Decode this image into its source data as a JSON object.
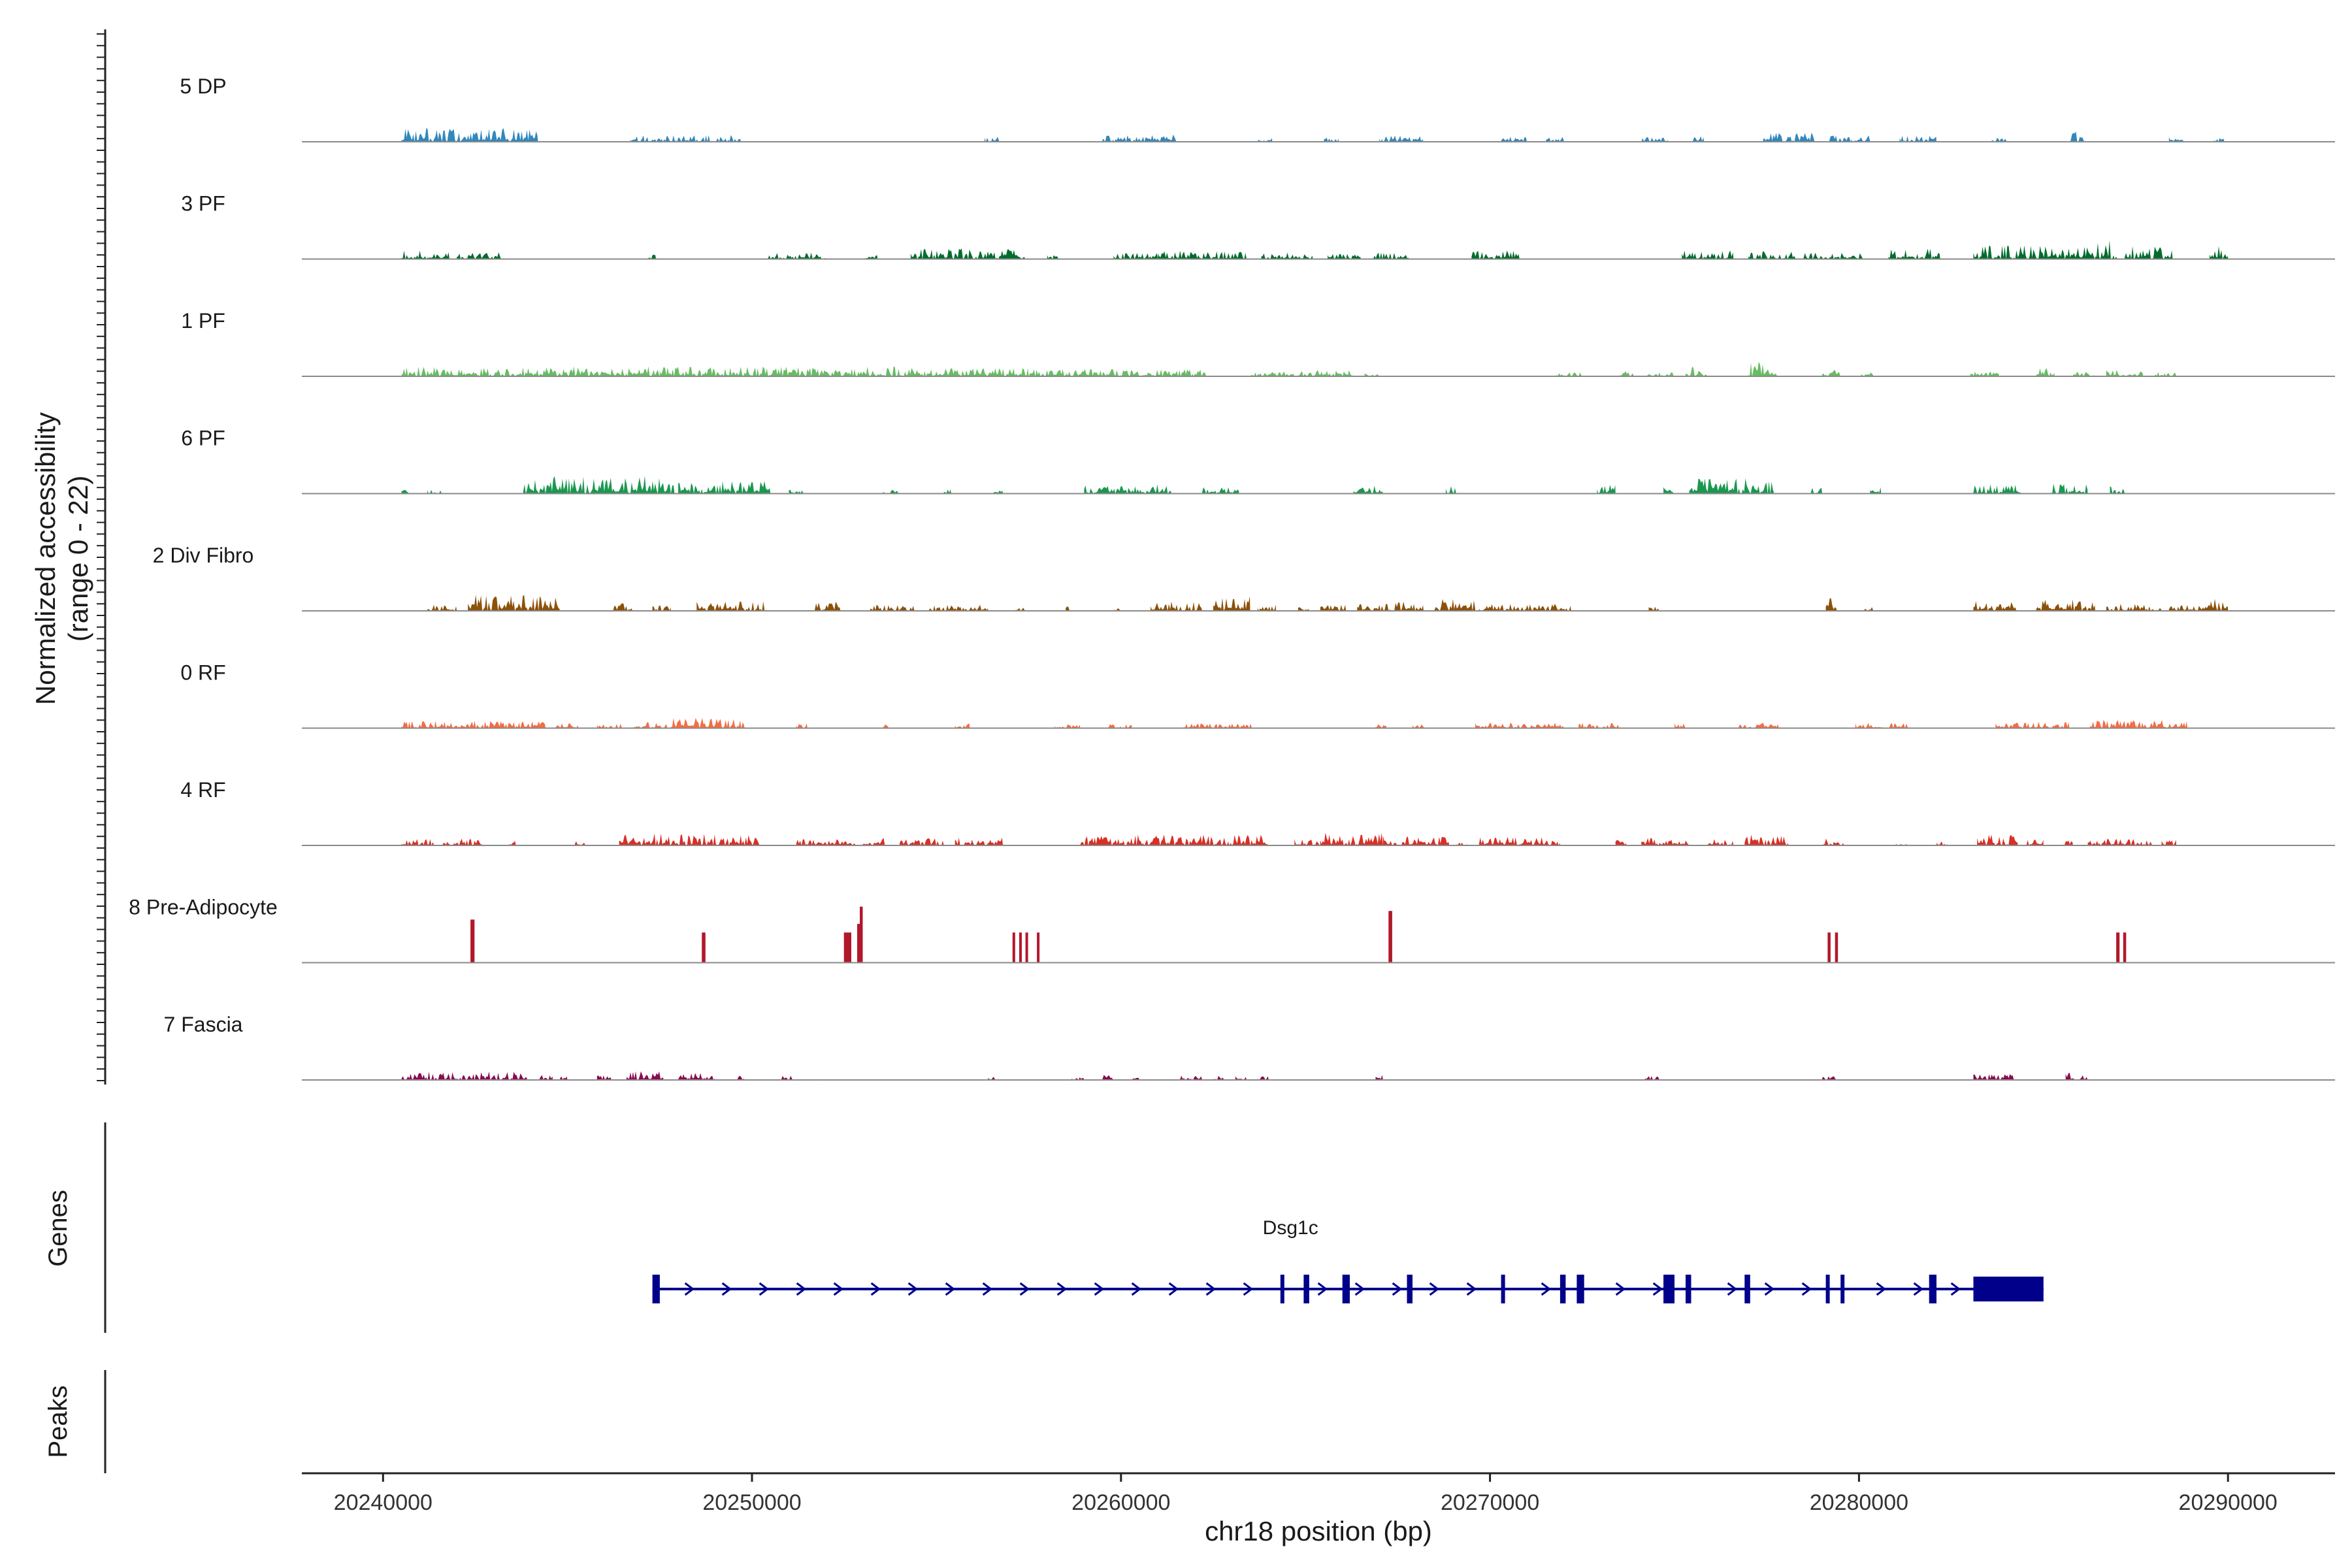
{
  "chart_data": {
    "type": "coverage",
    "ylabel_line1": "Normalized accessibility",
    "ylabel_line2": "(range 0 - 22)",
    "y_range": [
      0,
      22
    ],
    "xlabel": "chr18 position (bp)",
    "xlim": [
      20237800,
      20292900
    ],
    "x_ticks": [
      20240000,
      20250000,
      20260000,
      20270000,
      20280000,
      20290000
    ],
    "x_tick_labels": [
      "20240000",
      "20250000",
      "20260000",
      "20270000",
      "20280000",
      "20290000"
    ],
    "tracks": [
      {
        "name": "5 DP",
        "color": "#3288bd",
        "seed": 11,
        "regions": [
          [
            20240500,
            20244200,
            3.2
          ],
          [
            20246700,
            20249700,
            1.6
          ],
          [
            20256300,
            20256700,
            1.2
          ],
          [
            20259500,
            20261500,
            1.7
          ],
          [
            20263700,
            20264100,
            1.0
          ],
          [
            20265500,
            20265900,
            1.0
          ],
          [
            20267000,
            20268200,
            1.5
          ],
          [
            20270300,
            20271000,
            1.3
          ],
          [
            20271500,
            20272000,
            1.3
          ],
          [
            20274100,
            20274900,
            1.1
          ],
          [
            20275500,
            20275800,
            1.3
          ],
          [
            20277400,
            20278800,
            2.2
          ],
          [
            20279200,
            20280300,
            1.5
          ],
          [
            20281100,
            20282100,
            1.5
          ],
          [
            20283600,
            20284000,
            1.1
          ],
          [
            20285700,
            20286100,
            2.4
          ],
          [
            20288400,
            20288800,
            1.2
          ],
          [
            20289600,
            20289900,
            1.0
          ]
        ]
      },
      {
        "name": "3 PF",
        "color": "#006d2c",
        "seed": 23,
        "regions": [
          [
            20240500,
            20241800,
            2.0
          ],
          [
            20242000,
            20243200,
            1.6
          ],
          [
            20247200,
            20247400,
            1.0
          ],
          [
            20250400,
            20252000,
            1.5
          ],
          [
            20253000,
            20253400,
            0.9
          ],
          [
            20254300,
            20257400,
            2.6
          ],
          [
            20258000,
            20258300,
            0.9
          ],
          [
            20259800,
            20261000,
            1.6
          ],
          [
            20261000,
            20263400,
            2.0
          ],
          [
            20263800,
            20265200,
            1.5
          ],
          [
            20265600,
            20266500,
            1.5
          ],
          [
            20266800,
            20267800,
            1.6
          ],
          [
            20269500,
            20270800,
            2.0
          ],
          [
            20275200,
            20276600,
            2.2
          ],
          [
            20277000,
            20278300,
            1.8
          ],
          [
            20278500,
            20280100,
            1.6
          ],
          [
            20280800,
            20282200,
            2.6
          ],
          [
            20283100,
            20286400,
            3.2
          ],
          [
            20286400,
            20287000,
            4.6
          ],
          [
            20287200,
            20288500,
            3.2
          ],
          [
            20289500,
            20290000,
            3.0
          ]
        ]
      },
      {
        "name": "1 PF",
        "color": "#66bd63",
        "seed": 37,
        "regions": [
          [
            20240500,
            20247500,
            2.3
          ],
          [
            20247500,
            20253900,
            2.3
          ],
          [
            20253900,
            20257500,
            2.0
          ],
          [
            20257500,
            20259600,
            1.7
          ],
          [
            20259600,
            20262300,
            1.7
          ],
          [
            20263500,
            20264700,
            1.2
          ],
          [
            20264800,
            20266300,
            1.5
          ],
          [
            20266600,
            20267000,
            1.0
          ],
          [
            20271800,
            20272500,
            1.0
          ],
          [
            20273500,
            20273900,
            1.2
          ],
          [
            20274200,
            20275000,
            0.9
          ],
          [
            20275300,
            20275900,
            2.3
          ],
          [
            20277000,
            20277800,
            3.4
          ],
          [
            20279000,
            20279600,
            1.4
          ],
          [
            20280000,
            20280400,
            1.1
          ],
          [
            20283000,
            20283800,
            1.2
          ],
          [
            20284800,
            20285300,
            2.1
          ],
          [
            20285800,
            20286400,
            1.1
          ],
          [
            20286700,
            20287700,
            1.7
          ],
          [
            20288000,
            20288600,
            1.0
          ]
        ]
      },
      {
        "name": "6 PF",
        "color": "#1a9850",
        "seed": 41,
        "regions": [
          [
            20240500,
            20240700,
            2.4
          ],
          [
            20241200,
            20241600,
            1.3
          ],
          [
            20243800,
            20247900,
            4.2
          ],
          [
            20248000,
            20250500,
            3.0
          ],
          [
            20251000,
            20251400,
            1.0
          ],
          [
            20253500,
            20254000,
            1.0
          ],
          [
            20255200,
            20255400,
            1.0
          ],
          [
            20256500,
            20256800,
            1.1
          ],
          [
            20259000,
            20261400,
            2.2
          ],
          [
            20262200,
            20263200,
            1.5
          ],
          [
            20266300,
            20267100,
            2.4
          ],
          [
            20268800,
            20269200,
            1.8
          ],
          [
            20272900,
            20273400,
            2.2
          ],
          [
            20274700,
            20275000,
            1.7
          ],
          [
            20275400,
            20277700,
            3.6
          ],
          [
            20278700,
            20279000,
            1.5
          ],
          [
            20280300,
            20280600,
            1.8
          ],
          [
            20283100,
            20284400,
            2.2
          ],
          [
            20285200,
            20286200,
            2.6
          ],
          [
            20286800,
            20287200,
            1.7
          ]
        ]
      },
      {
        "name": "2 Div Fibro",
        "color": "#8c510a",
        "seed": 53,
        "regions": [
          [
            20241200,
            20242000,
            1.6
          ],
          [
            20242300,
            20244800,
            3.8
          ],
          [
            20246200,
            20246800,
            2.0
          ],
          [
            20247300,
            20247800,
            1.3
          ],
          [
            20248500,
            20250400,
            2.2
          ],
          [
            20251700,
            20252400,
            2.3
          ],
          [
            20253200,
            20254400,
            1.4
          ],
          [
            20254800,
            20256400,
            1.5
          ],
          [
            20257100,
            20257400,
            0.9
          ],
          [
            20258500,
            20258800,
            1.0
          ],
          [
            20259800,
            20260000,
            1.0
          ],
          [
            20260800,
            20262200,
            2.5
          ],
          [
            20262500,
            20263500,
            3.4
          ],
          [
            20263700,
            20264200,
            1.5
          ],
          [
            20264800,
            20265100,
            0.9
          ],
          [
            20265400,
            20266100,
            1.4
          ],
          [
            20266400,
            20267300,
            1.6
          ],
          [
            20267300,
            20268200,
            2.6
          ],
          [
            20268500,
            20269600,
            2.8
          ],
          [
            20269700,
            20272200,
            1.7
          ],
          [
            20274300,
            20274600,
            1.0
          ],
          [
            20279100,
            20279400,
            3.0
          ],
          [
            20280100,
            20280400,
            1.0
          ],
          [
            20283100,
            20284300,
            2.8
          ],
          [
            20284800,
            20286400,
            2.7
          ],
          [
            20286700,
            20288200,
            1.7
          ],
          [
            20288400,
            20289600,
            1.5
          ],
          [
            20289500,
            20290000,
            2.8
          ]
        ]
      },
      {
        "name": "0 RF",
        "color": "#f46d43",
        "seed": 67,
        "regions": [
          [
            20240500,
            20244400,
            1.7
          ],
          [
            20244600,
            20245300,
            1.4
          ],
          [
            20245800,
            20246500,
            1.0
          ],
          [
            20246800,
            20247700,
            1.4
          ],
          [
            20247800,
            20249800,
            2.4
          ],
          [
            20251200,
            20251500,
            1.3
          ],
          [
            20253400,
            20253700,
            0.9
          ],
          [
            20255500,
            20255900,
            1.2
          ],
          [
            20258200,
            20258900,
            0.9
          ],
          [
            20259600,
            20260000,
            1.0
          ],
          [
            20260000,
            20260300,
            0.9
          ],
          [
            20261700,
            20263600,
            1.1
          ],
          [
            20266900,
            20267200,
            1.1
          ],
          [
            20267900,
            20268300,
            0.9
          ],
          [
            20269600,
            20272000,
            1.3
          ],
          [
            20272400,
            20273600,
            1.3
          ],
          [
            20275000,
            20275300,
            1.2
          ],
          [
            20276700,
            20277900,
            1.2
          ],
          [
            20279900,
            20281400,
            1.2
          ],
          [
            20283700,
            20285700,
            1.5
          ],
          [
            20286200,
            20287500,
            2.4
          ],
          [
            20287500,
            20288900,
            2.0
          ]
        ]
      },
      {
        "name": "4 RF",
        "color": "#d73027",
        "seed": 79,
        "regions": [
          [
            20240500,
            20241400,
            1.5
          ],
          [
            20241600,
            20242800,
            1.6
          ],
          [
            20243400,
            20243600,
            1.2
          ],
          [
            20245200,
            20245500,
            1.0
          ],
          [
            20246400,
            20250200,
            2.9
          ],
          [
            20251200,
            20252800,
            1.5
          ],
          [
            20253000,
            20253600,
            1.8
          ],
          [
            20254000,
            20255200,
            1.7
          ],
          [
            20255500,
            20256800,
            1.8
          ],
          [
            20258900,
            20264000,
            2.5
          ],
          [
            20264700,
            20265400,
            1.5
          ],
          [
            20265400,
            20267100,
            3.0
          ],
          [
            20267100,
            20268900,
            2.2
          ],
          [
            20269100,
            20269400,
            1.3
          ],
          [
            20269700,
            20271900,
            2.0
          ],
          [
            20273400,
            20273700,
            1.5
          ],
          [
            20274100,
            20275400,
            2.0
          ],
          [
            20275900,
            20276600,
            1.5
          ],
          [
            20276900,
            20278100,
            2.6
          ],
          [
            20279000,
            20279600,
            1.6
          ],
          [
            20281000,
            20281300,
            1.0
          ],
          [
            20282100,
            20282400,
            1.1
          ],
          [
            20283200,
            20284300,
            2.8
          ],
          [
            20284500,
            20285000,
            1.4
          ],
          [
            20285500,
            20285800,
            1.4
          ],
          [
            20286200,
            20288000,
            1.6
          ],
          [
            20288200,
            20288600,
            1.4
          ]
        ]
      },
      {
        "name": "8 Pre-Adipocyte",
        "color": "#b2182b",
        "seed": 0,
        "bars": [
          [
            20242370,
            20242480,
            10.0
          ],
          [
            20248640,
            20248740,
            7.0
          ],
          [
            20252490,
            20252610,
            7.0
          ],
          [
            20252610,
            20252690,
            7.0
          ],
          [
            20252850,
            20252920,
            9.0
          ],
          [
            20252920,
            20253000,
            13.0
          ],
          [
            20257060,
            20257130,
            7.0
          ],
          [
            20257240,
            20257310,
            7.0
          ],
          [
            20257410,
            20257480,
            7.0
          ],
          [
            20257720,
            20257790,
            7.0
          ],
          [
            20267250,
            20267350,
            12.0
          ],
          [
            20279150,
            20279230,
            7.0
          ],
          [
            20279350,
            20279430,
            7.0
          ],
          [
            20286970,
            20287060,
            7.0
          ],
          [
            20287160,
            20287240,
            7.0
          ]
        ]
      },
      {
        "name": "7 Fascia",
        "color": "#8b0a50",
        "seed": 97,
        "regions": [
          [
            20240500,
            20243900,
            2.0
          ],
          [
            20244200,
            20244600,
            1.2
          ],
          [
            20244800,
            20245000,
            1.0
          ],
          [
            20245800,
            20246200,
            1.1
          ],
          [
            20246600,
            20247600,
            2.2
          ],
          [
            20248000,
            20249000,
            1.7
          ],
          [
            20249600,
            20249800,
            1.0
          ],
          [
            20250800,
            20251100,
            1.0
          ],
          [
            20251900,
            20252000,
            0.9
          ],
          [
            20256400,
            20256600,
            0.9
          ],
          [
            20258600,
            20259000,
            1.0
          ],
          [
            20259500,
            20259800,
            1.2
          ],
          [
            20260300,
            20260500,
            1.0
          ],
          [
            20261600,
            20262200,
            1.1
          ],
          [
            20262500,
            20262800,
            1.0
          ],
          [
            20263100,
            20263400,
            1.0
          ],
          [
            20263700,
            20264000,
            1.0
          ],
          [
            20266900,
            20267100,
            1.4
          ],
          [
            20274200,
            20274600,
            1.0
          ],
          [
            20279000,
            20279400,
            1.1
          ],
          [
            20283100,
            20284200,
            1.4
          ],
          [
            20285600,
            20286200,
            1.9
          ]
        ]
      }
    ],
    "panels": {
      "genes": "Genes",
      "peaks": "Peaks"
    },
    "gene": {
      "name": "Dsg1c",
      "start": 20247300,
      "end": 20285000,
      "strand": "+",
      "exons": [
        [
          20247300,
          20247500
        ],
        [
          20264320,
          20264370
        ],
        [
          20264950,
          20265100
        ],
        [
          20266000,
          20266200
        ],
        [
          20267750,
          20267900
        ],
        [
          20270300,
          20270400
        ],
        [
          20271900,
          20272050
        ],
        [
          20272350,
          20272550
        ],
        [
          20274700,
          20275000
        ],
        [
          20275300,
          20275450
        ],
        [
          20276900,
          20277050
        ],
        [
          20279100,
          20279200
        ],
        [
          20279500,
          20279550
        ],
        [
          20281900,
          20282100
        ],
        [
          20283100,
          20285000
        ]
      ]
    }
  }
}
